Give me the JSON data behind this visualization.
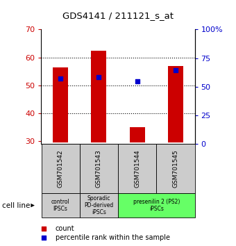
{
  "title": "GDS4141 / 211121_s_at",
  "samples": [
    "GSM701542",
    "GSM701543",
    "GSM701544",
    "GSM701545"
  ],
  "red_values": [
    56.5,
    62.5,
    35.0,
    57.0
  ],
  "blue_values": [
    52.5,
    53.0,
    51.5,
    55.5
  ],
  "red_base": 29.5,
  "ylim_left": [
    29,
    70
  ],
  "yticks_left": [
    30,
    40,
    50,
    60,
    70
  ],
  "yticks_right": [
    0,
    25,
    50,
    75,
    100
  ],
  "ytick_labels_right": [
    "0",
    "25",
    "50",
    "75",
    "100%"
  ],
  "grid_values": [
    40,
    50,
    60
  ],
  "bar_width": 0.4,
  "red_color": "#cc0000",
  "blue_color": "#0000cc",
  "group_ranges": [
    [
      0,
      1,
      "control\nIPSCs",
      "#cccccc"
    ],
    [
      1,
      2,
      "Sporadic\nPD-derived\niPSCs",
      "#cccccc"
    ],
    [
      2,
      4,
      "presenilin 2 (PS2)\niPSCs",
      "#66ff66"
    ]
  ],
  "cell_line_label": "cell line",
  "legend_count": "count",
  "legend_percentile": "percentile rank within the sample"
}
